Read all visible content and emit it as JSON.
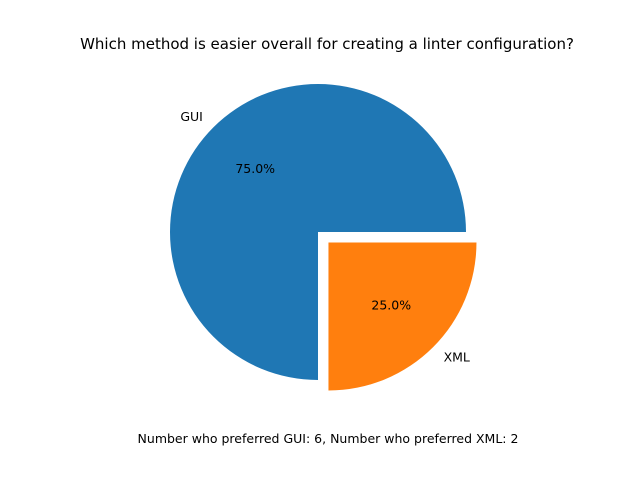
{
  "chart_data": {
    "type": "pie",
    "title": "Which method is easier overall for creating a linter configuration?",
    "slices": [
      {
        "label": "GUI",
        "value": 6,
        "percent_label": "75.0%",
        "color": "#1f77b4",
        "explode": 0
      },
      {
        "label": "XML",
        "value": 2,
        "percent_label": "25.0%",
        "color": "#ff7f0e",
        "explode": 0.1
      }
    ],
    "start_angle_deg": 0,
    "direction": "counterclockwise",
    "footnote": "Number who preferred GUI: 6, Number who preferred XML: 2"
  }
}
